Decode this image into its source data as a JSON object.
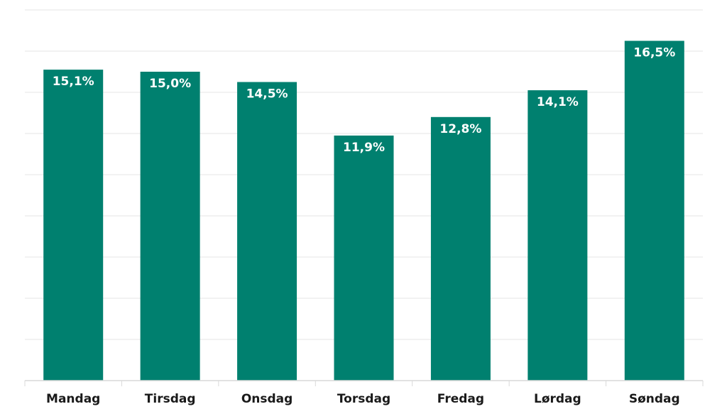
{
  "chart_data": {
    "type": "bar",
    "categories": [
      "Mandag",
      "Tirsdag",
      "Onsdag",
      "Torsdag",
      "Fredag",
      "Lørdag",
      "Søndag"
    ],
    "values": [
      15.1,
      15.0,
      14.5,
      11.9,
      12.8,
      14.1,
      16.5
    ],
    "data_labels": [
      "15,1%",
      "15,0%",
      "14,5%",
      "11,9%",
      "12,8%",
      "14,1%",
      "16,5%"
    ],
    "title": "",
    "xlabel": "",
    "ylabel": "",
    "ylim": [
      0,
      18
    ],
    "grid": true,
    "legend": "none",
    "bar_color": "#00806f"
  }
}
